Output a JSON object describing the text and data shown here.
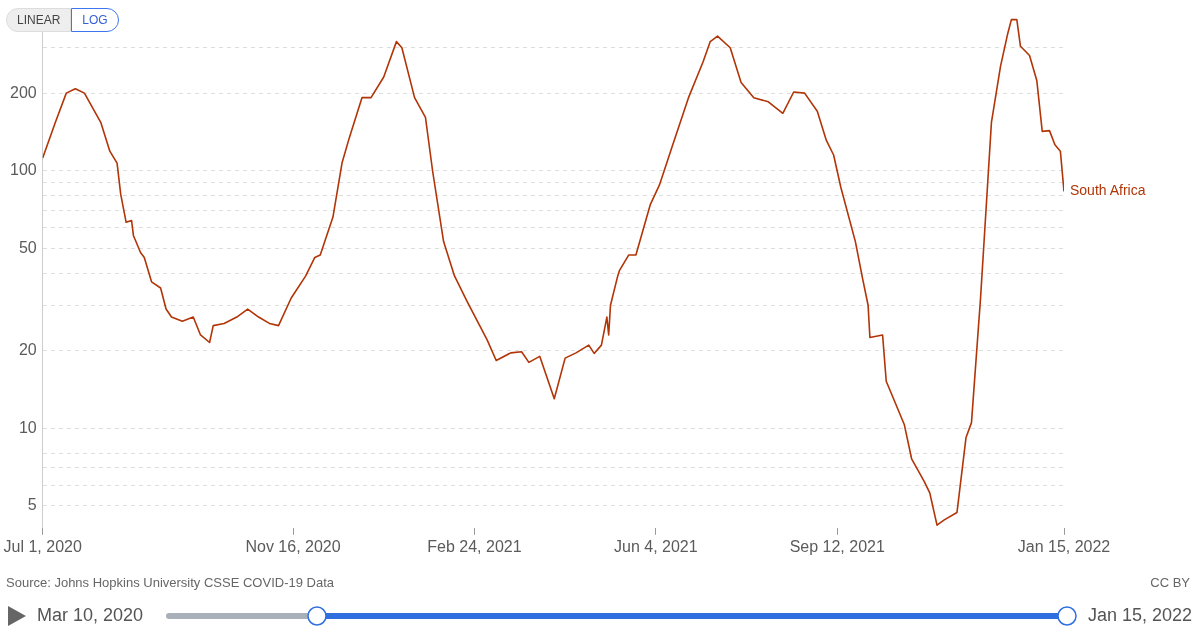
{
  "chart_data": {
    "type": "line",
    "log": true,
    "grid": "y",
    "legend": false,
    "marker": "none",
    "line_style": "solid",
    "xlim": [
      "2020-07-01",
      "2022-01-15"
    ],
    "xticks": [
      {
        "value": "2020-07-01",
        "label": "Jul 1, 2020"
      },
      {
        "value": "2020-11-16",
        "label": "Nov 16, 2020"
      },
      {
        "value": "2021-02-24",
        "label": "Feb 24, 2021"
      },
      {
        "value": "2021-06-04",
        "label": "Jun 4, 2021"
      },
      {
        "value": "2021-09-12",
        "label": "Sep 12, 2021"
      },
      {
        "value": "2022-01-15",
        "label": "Jan 15, 2022"
      }
    ],
    "ylim": [
      4.1,
      400
    ],
    "yticks": [
      5,
      {
        "value": 6,
        "label": null
      },
      {
        "value": 7,
        "label": null
      },
      {
        "value": 8,
        "label": null
      },
      10,
      20,
      {
        "value": 30,
        "label": null
      },
      {
        "value": 40,
        "label": null
      },
      50,
      {
        "value": 60,
        "label": null
      },
      {
        "value": 70,
        "label": null
      },
      {
        "value": 80,
        "label": null
      },
      {
        "value": 90,
        "label": null
      },
      100,
      200,
      {
        "value": 300,
        "label": null
      }
    ],
    "annotations": [
      "LINEAR",
      "LOG",
      "Source: Johns Hopkins University CSSE COVID-19 Data",
      "CC BY",
      "Mar 10, 2020",
      "Jan 15, 2022"
    ],
    "series": [
      {
        "name": "South Africa",
        "color": "#b13507",
        "x": [
          "2020-07-01",
          "2020-07-08",
          "2020-07-14",
          "2020-07-19",
          "2020-07-24",
          "2020-08-02",
          "2020-08-07",
          "2020-08-11",
          "2020-08-13",
          "2020-08-16",
          "2020-08-19",
          "2020-08-20",
          "2020-08-24",
          "2020-08-26",
          "2020-08-30",
          "2020-09-04",
          "2020-09-07",
          "2020-09-10",
          "2020-09-16",
          "2020-09-22",
          "2020-09-26",
          "2020-10-01",
          "2020-10-03",
          "2020-10-09",
          "2020-10-16",
          "2020-10-22",
          "2020-10-28",
          "2020-11-03",
          "2020-11-08",
          "2020-11-15",
          "2020-11-23",
          "2020-11-28",
          "2020-12-01",
          "2020-12-08",
          "2020-12-13",
          "2020-12-17",
          "2020-12-24",
          "2020-12-29",
          "2021-01-05",
          "2021-01-12",
          "2021-01-15",
          "2021-01-22",
          "2021-01-28",
          "2021-02-01",
          "2021-02-07",
          "2021-02-13",
          "2021-02-20",
          "2021-03-03",
          "2021-03-08",
          "2021-03-16",
          "2021-03-22",
          "2021-03-26",
          "2021-04-01",
          "2021-04-09",
          "2021-04-15",
          "2021-04-21",
          "2021-04-28",
          "2021-05-01",
          "2021-05-05",
          "2021-05-08",
          "2021-05-09",
          "2021-05-10",
          "2021-05-14",
          "2021-05-15",
          "2021-05-20",
          "2021-05-24",
          "2021-06-01",
          "2021-06-06",
          "2021-06-13",
          "2021-06-22",
          "2021-06-30",
          "2021-07-04",
          "2021-07-08",
          "2021-07-15",
          "2021-07-21",
          "2021-07-28",
          "2021-08-05",
          "2021-08-13",
          "2021-08-19",
          "2021-08-25",
          "2021-09-01",
          "2021-09-06",
          "2021-09-10",
          "2021-09-14",
          "2021-09-22",
          "2021-09-26",
          "2021-09-29",
          "2021-09-30",
          "2021-10-07",
          "2021-10-09",
          "2021-10-19",
          "2021-10-23",
          "2021-10-30",
          "2021-11-02",
          "2021-11-06",
          "2021-11-10",
          "2021-11-17",
          "2021-11-22",
          "2021-11-25",
          "2021-11-30",
          "2021-12-06",
          "2021-12-11",
          "2021-12-15",
          "2021-12-17",
          "2021-12-20",
          "2021-12-22",
          "2021-12-27",
          "2021-12-31",
          "2022-01-03",
          "2022-01-07",
          "2022-01-10",
          "2022-01-13",
          "2022-01-15"
        ],
        "values": [
          112,
          154,
          200,
          208,
          200,
          154,
          119,
          107,
          81,
          63,
          64,
          56,
          48,
          46,
          37,
          35,
          29,
          27,
          26,
          27,
          23,
          21.5,
          25,
          25.5,
          27,
          29,
          27,
          25.5,
          25,
          32,
          39,
          46,
          47,
          66,
          107,
          134,
          192,
          192,
          231,
          317,
          300,
          192,
          161,
          99,
          53,
          39,
          31,
          22,
          18.3,
          19.6,
          19.8,
          18,
          19,
          13,
          18.7,
          19.6,
          21,
          19.5,
          21,
          27,
          23,
          30,
          39,
          41,
          47,
          47,
          74,
          88,
          124,
          192,
          264,
          317,
          333,
          300,
          220,
          192,
          185,
          167,
          202,
          200,
          170,
          131,
          115,
          86,
          53,
          38,
          30,
          22.5,
          23,
          15.2,
          10.3,
          7.6,
          6.2,
          5.6,
          4.2,
          4.4,
          4.7,
          9.2,
          10.5,
          32,
          154,
          254,
          341,
          386,
          386,
          304,
          280,
          224,
          142,
          143,
          126,
          119,
          83
        ]
      }
    ]
  }
}
